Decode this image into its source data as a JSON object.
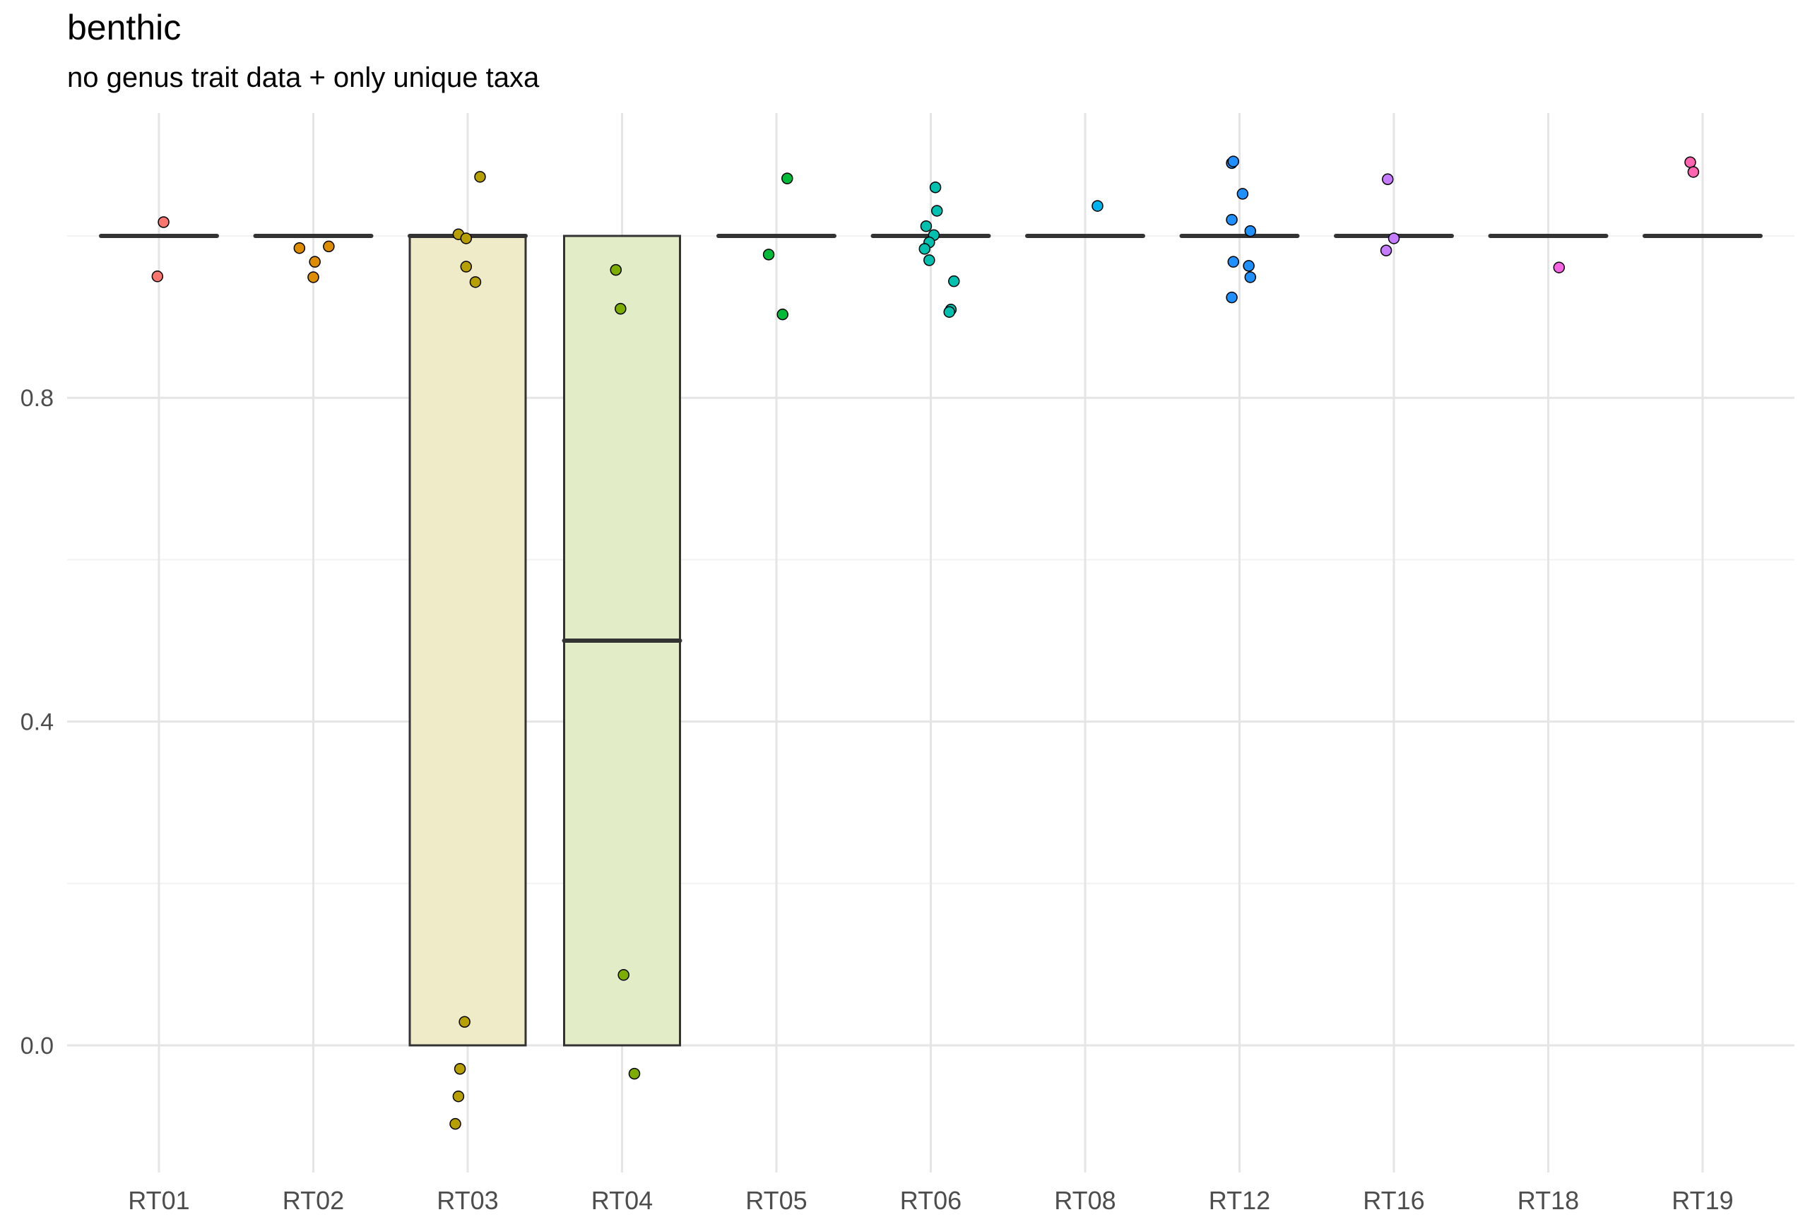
{
  "chart_data": {
    "type": "box",
    "title": "benthic",
    "subtitle": "no genus trait data + only unique taxa",
    "xlabel": "",
    "ylabel": "",
    "ylim": [
      -0.16,
      1.15
    ],
    "y_ticks": [
      0.0,
      0.4,
      0.8
    ],
    "grid": true,
    "legend": "none",
    "categories": [
      "RT01",
      "RT02",
      "RT03",
      "RT04",
      "RT05",
      "RT06",
      "RT08",
      "RT12",
      "RT16",
      "RT18",
      "RT19"
    ],
    "boxes": [
      {
        "category": "RT01",
        "min": 1.0,
        "q1": 1.0,
        "median": 1.0,
        "q3": 1.0,
        "max": 1.0
      },
      {
        "category": "RT02",
        "min": 1.0,
        "q1": 1.0,
        "median": 1.0,
        "q3": 1.0,
        "max": 1.0
      },
      {
        "category": "RT03",
        "min": 0.0,
        "q1": 0.0,
        "median": 1.0,
        "q3": 1.0,
        "max": 1.0
      },
      {
        "category": "RT04",
        "min": 0.0,
        "q1": 0.0,
        "median": 0.5,
        "q3": 1.0,
        "max": 1.0
      },
      {
        "category": "RT05",
        "min": 1.0,
        "q1": 1.0,
        "median": 1.0,
        "q3": 1.0,
        "max": 1.0
      },
      {
        "category": "RT06",
        "min": 1.0,
        "q1": 1.0,
        "median": 1.0,
        "q3": 1.0,
        "max": 1.0
      },
      {
        "category": "RT08",
        "min": 1.0,
        "q1": 1.0,
        "median": 1.0,
        "q3": 1.0,
        "max": 1.0
      },
      {
        "category": "RT12",
        "min": 1.0,
        "q1": 1.0,
        "median": 1.0,
        "q3": 1.0,
        "max": 1.0
      },
      {
        "category": "RT16",
        "min": 1.0,
        "q1": 1.0,
        "median": 1.0,
        "q3": 1.0,
        "max": 1.0
      },
      {
        "category": "RT18",
        "min": 1.0,
        "q1": 1.0,
        "median": 1.0,
        "q3": 1.0,
        "max": 1.0
      },
      {
        "category": "RT19",
        "min": 1.0,
        "q1": 1.0,
        "median": 1.0,
        "q3": 1.0,
        "max": 1.0
      }
    ],
    "points": [
      {
        "category": "RT01",
        "jitter": 0.03,
        "y": 1.017
      },
      {
        "category": "RT01",
        "jitter": -0.01,
        "y": 0.95
      },
      {
        "category": "RT02",
        "jitter": -0.09,
        "y": 0.985
      },
      {
        "category": "RT02",
        "jitter": 0.01,
        "y": 0.968
      },
      {
        "category": "RT02",
        "jitter": 0.1,
        "y": 0.987
      },
      {
        "category": "RT02",
        "jitter": 0.0,
        "y": 0.949
      },
      {
        "category": "RT03",
        "jitter": 0.08,
        "y": 1.073
      },
      {
        "category": "RT03",
        "jitter": -0.06,
        "y": 1.002
      },
      {
        "category": "RT03",
        "jitter": -0.01,
        "y": 0.997
      },
      {
        "category": "RT03",
        "jitter": -0.01,
        "y": 0.962
      },
      {
        "category": "RT03",
        "jitter": 0.05,
        "y": 0.943
      },
      {
        "category": "RT03",
        "jitter": -0.02,
        "y": 0.029
      },
      {
        "category": "RT03",
        "jitter": -0.05,
        "y": -0.029
      },
      {
        "category": "RT03",
        "jitter": -0.06,
        "y": -0.063
      },
      {
        "category": "RT03",
        "jitter": -0.08,
        "y": -0.097
      },
      {
        "category": "RT04",
        "jitter": -0.04,
        "y": 0.958
      },
      {
        "category": "RT04",
        "jitter": -0.01,
        "y": 0.91
      },
      {
        "category": "RT04",
        "jitter": 0.01,
        "y": 0.087
      },
      {
        "category": "RT04",
        "jitter": 0.08,
        "y": -0.035
      },
      {
        "category": "RT05",
        "jitter": 0.07,
        "y": 1.071
      },
      {
        "category": "RT05",
        "jitter": -0.05,
        "y": 0.977
      },
      {
        "category": "RT05",
        "jitter": 0.04,
        "y": 0.903
      },
      {
        "category": "RT06",
        "jitter": 0.03,
        "y": 1.06
      },
      {
        "category": "RT06",
        "jitter": 0.04,
        "y": 1.031
      },
      {
        "category": "RT06",
        "jitter": -0.03,
        "y": 1.012
      },
      {
        "category": "RT06",
        "jitter": 0.02,
        "y": 1.001
      },
      {
        "category": "RT06",
        "jitter": -0.01,
        "y": 0.992
      },
      {
        "category": "RT06",
        "jitter": -0.04,
        "y": 0.984
      },
      {
        "category": "RT06",
        "jitter": -0.01,
        "y": 0.97
      },
      {
        "category": "RT06",
        "jitter": 0.15,
        "y": 0.944
      },
      {
        "category": "RT06",
        "jitter": 0.13,
        "y": 0.909
      },
      {
        "category": "RT06",
        "jitter": 0.12,
        "y": 0.906
      },
      {
        "category": "RT08",
        "jitter": 0.08,
        "y": 1.037
      },
      {
        "category": "RT12",
        "jitter": -0.05,
        "y": 1.09
      },
      {
        "category": "RT12",
        "jitter": -0.04,
        "y": 1.092
      },
      {
        "category": "RT12",
        "jitter": 0.02,
        "y": 1.052
      },
      {
        "category": "RT12",
        "jitter": -0.05,
        "y": 1.02
      },
      {
        "category": "RT12",
        "jitter": 0.07,
        "y": 1.006
      },
      {
        "category": "RT12",
        "jitter": -0.04,
        "y": 0.968
      },
      {
        "category": "RT12",
        "jitter": 0.06,
        "y": 0.963
      },
      {
        "category": "RT12",
        "jitter": 0.07,
        "y": 0.949
      },
      {
        "category": "RT12",
        "jitter": -0.05,
        "y": 0.924
      },
      {
        "category": "RT16",
        "jitter": -0.04,
        "y": 1.07
      },
      {
        "category": "RT16",
        "jitter": 0.0,
        "y": 0.997
      },
      {
        "category": "RT16",
        "jitter": -0.05,
        "y": 0.982
      },
      {
        "category": "RT18",
        "jitter": 0.07,
        "y": 0.961
      },
      {
        "category": "RT19",
        "jitter": -0.08,
        "y": 1.091
      },
      {
        "category": "RT19",
        "jitter": -0.06,
        "y": 1.079
      }
    ],
    "colors": {
      "RT01": "#F8766D",
      "RT02": "#DE8C00",
      "RT03": "#B79F00",
      "RT04": "#7CAE00",
      "RT05": "#00BA38",
      "RT06": "#00C0AF",
      "RT08": "#00B4F0",
      "RT12": "#1E90FF",
      "RT16": "#C77CFF",
      "RT18": "#F564E3",
      "RT19": "#FF64B0"
    }
  }
}
